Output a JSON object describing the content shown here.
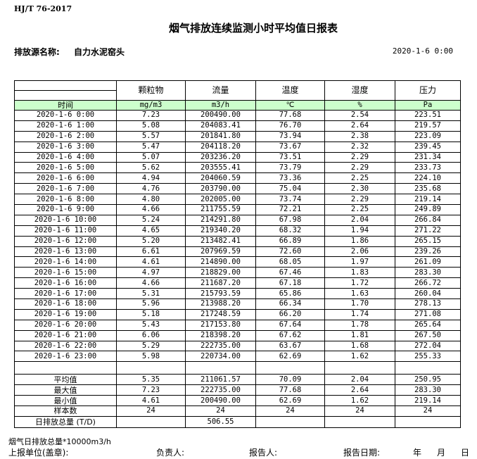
{
  "standard": "HJ/T  76-2017",
  "title": "烟气排放连续监测小时平均值日报表",
  "source_label": "排放源名称:",
  "source_value": "自力水泥窑头",
  "report_date": "2020-1-6 0:00",
  "columns": [
    "颗粒物",
    "流量",
    "温度",
    "湿度",
    "压力"
  ],
  "time_header": "时间",
  "units": [
    "mg/m3",
    "m3/h",
    "℃",
    "%",
    "Pa"
  ],
  "rows": [
    [
      "2020-1-6 0:00",
      "7.23",
      "200490.00",
      "77.68",
      "2.54",
      "223.51"
    ],
    [
      "2020-1-6 1:00",
      "5.08",
      "204083.41",
      "76.70",
      "2.64",
      "219.57"
    ],
    [
      "2020-1-6 2:00",
      "5.57",
      "201841.80",
      "73.94",
      "2.38",
      "223.09"
    ],
    [
      "2020-1-6 3:00",
      "5.47",
      "204118.20",
      "73.67",
      "2.32",
      "239.45"
    ],
    [
      "2020-1-6 4:00",
      "5.07",
      "203236.20",
      "73.51",
      "2.29",
      "231.34"
    ],
    [
      "2020-1-6 5:00",
      "5.62",
      "203555.41",
      "73.79",
      "2.29",
      "233.73"
    ],
    [
      "2020-1-6 6:00",
      "4.94",
      "204060.59",
      "73.36",
      "2.25",
      "224.10"
    ],
    [
      "2020-1-6 7:00",
      "4.76",
      "203790.00",
      "75.04",
      "2.30",
      "235.68"
    ],
    [
      "2020-1-6 8:00",
      "4.80",
      "202005.00",
      "73.74",
      "2.29",
      "219.14"
    ],
    [
      "2020-1-6 9:00",
      "4.66",
      "211755.59",
      "72.21",
      "2.25",
      "249.89"
    ],
    [
      "2020-1-6 10:00",
      "5.24",
      "214291.80",
      "67.98",
      "2.04",
      "266.84"
    ],
    [
      "2020-1-6 11:00",
      "4.65",
      "219340.20",
      "68.32",
      "1.94",
      "271.22"
    ],
    [
      "2020-1-6 12:00",
      "5.20",
      "213482.41",
      "66.89",
      "1.86",
      "265.15"
    ],
    [
      "2020-1-6 13:00",
      "6.61",
      "207969.59",
      "72.60",
      "2.06",
      "239.26"
    ],
    [
      "2020-1-6 14:00",
      "4.61",
      "214890.00",
      "68.05",
      "1.97",
      "261.09"
    ],
    [
      "2020-1-6 15:00",
      "4.97",
      "218829.00",
      "67.46",
      "1.83",
      "283.30"
    ],
    [
      "2020-1-6 16:00",
      "4.66",
      "211687.20",
      "67.18",
      "1.72",
      "266.72"
    ],
    [
      "2020-1-6 17:00",
      "5.31",
      "215793.59",
      "65.86",
      "1.63",
      "260.04"
    ],
    [
      "2020-1-6 18:00",
      "5.96",
      "213988.20",
      "66.34",
      "1.70",
      "278.13"
    ],
    [
      "2020-1-6 19:00",
      "5.18",
      "217248.59",
      "66.20",
      "1.74",
      "271.08"
    ],
    [
      "2020-1-6 20:00",
      "5.43",
      "217153.80",
      "67.64",
      "1.78",
      "265.64"
    ],
    [
      "2020-1-6 21:00",
      "6.06",
      "218398.20",
      "67.62",
      "1.81",
      "267.50"
    ],
    [
      "2020-1-6 22:00",
      "5.29",
      "222735.00",
      "63.67",
      "1.68",
      "272.04"
    ],
    [
      "2020-1-6 23:00",
      "5.98",
      "220734.00",
      "62.69",
      "1.62",
      "255.33"
    ]
  ],
  "stats": [
    [
      "平均值",
      "5.35",
      "211061.57",
      "70.09",
      "2.04",
      "250.95"
    ],
    [
      "最大值",
      "7.23",
      "222735.00",
      "77.68",
      "2.64",
      "283.30"
    ],
    [
      "最小值",
      "4.61",
      "200490.00",
      "62.69",
      "1.62",
      "219.14"
    ],
    [
      "样本数",
      "24",
      "24",
      "24",
      "24",
      "24"
    ]
  ],
  "total": [
    "日排放总量 (T/D)",
    "",
    "506.55",
    "",
    "",
    ""
  ],
  "footer_note": "烟气日排放总量*10000m3/h",
  "signatures": {
    "unit": "上报单位(盖章):",
    "responsible": "负责人:",
    "reporter": "报告人:",
    "report_date_label": "报告日期:",
    "year": "年",
    "month": "月",
    "day": "日"
  },
  "colors": {
    "units_row_bg": "#ccffcc"
  }
}
